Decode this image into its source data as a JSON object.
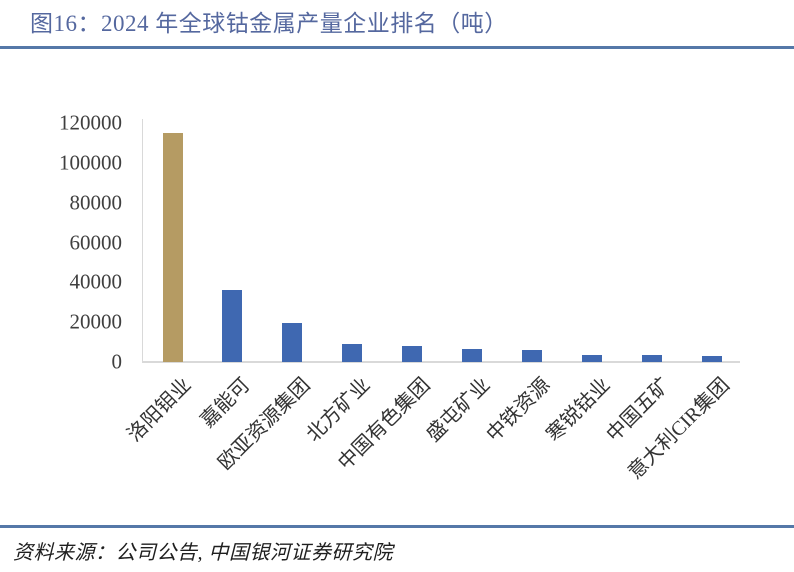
{
  "figure": {
    "title": "图16：2024 年全球钴金属产量企业排名（吨）",
    "source": "资料来源：公司公告, 中国银河证券研究院"
  },
  "colors": {
    "title_text": "#55689f",
    "rule_blue": "#5578a8",
    "bar_default": "#3f68b1",
    "bar_highlight": "#b59b63",
    "axis_line": "#d9d9d9",
    "tick_text": "#3f3f3f"
  },
  "chart_data": {
    "type": "bar",
    "title": "2024 年全球钴金属产量企业排名（吨）",
    "xlabel": "",
    "ylabel": "",
    "unit": "吨",
    "categories": [
      "洛阳钼业",
      "嘉能可",
      "欧亚资源集团",
      "北方矿业",
      "中国有色集团",
      "盛屯矿业",
      "中铁资源",
      "寒锐钴业",
      "中国五矿",
      "意大利CIR集团"
    ],
    "values": [
      115000,
      36000,
      19600,
      8900,
      7900,
      6700,
      6000,
      3700,
      3400,
      3000
    ],
    "highlight_index": 0,
    "ylim": [
      0,
      120000
    ],
    "yticks": [
      0,
      20000,
      40000,
      60000,
      80000,
      100000,
      120000
    ],
    "grid": false,
    "legend": false,
    "x_label_rotation_deg": 45
  }
}
